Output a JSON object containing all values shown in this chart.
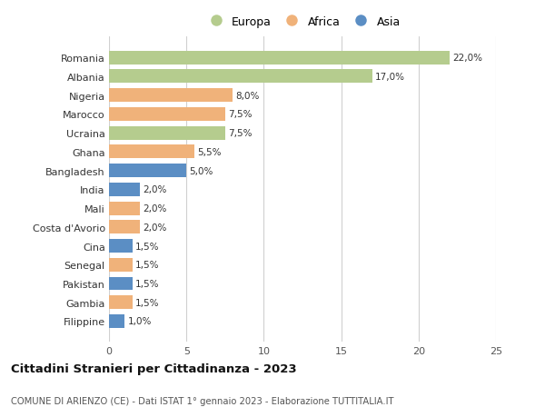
{
  "countries": [
    "Romania",
    "Albania",
    "Nigeria",
    "Marocco",
    "Ucraina",
    "Ghana",
    "Bangladesh",
    "India",
    "Mali",
    "Costa d'Avorio",
    "Cina",
    "Senegal",
    "Pakistan",
    "Gambia",
    "Filippine"
  ],
  "values": [
    22.0,
    17.0,
    8.0,
    7.5,
    7.5,
    5.5,
    5.0,
    2.0,
    2.0,
    2.0,
    1.5,
    1.5,
    1.5,
    1.5,
    1.0
  ],
  "labels": [
    "22,0%",
    "17,0%",
    "8,0%",
    "7,5%",
    "7,5%",
    "5,5%",
    "5,0%",
    "2,0%",
    "2,0%",
    "2,0%",
    "1,5%",
    "1,5%",
    "1,5%",
    "1,5%",
    "1,0%"
  ],
  "continents": [
    "Europa",
    "Europa",
    "Africa",
    "Africa",
    "Europa",
    "Africa",
    "Asia",
    "Asia",
    "Africa",
    "Africa",
    "Asia",
    "Africa",
    "Asia",
    "Africa",
    "Asia"
  ],
  "colors": {
    "Europa": "#b5cc8e",
    "Africa": "#f0b27a",
    "Asia": "#5b8ec4"
  },
  "legend_labels": [
    "Europa",
    "Africa",
    "Asia"
  ],
  "xlim": [
    0,
    25
  ],
  "xticks": [
    0,
    5,
    10,
    15,
    20,
    25
  ],
  "title": "Cittadini Stranieri per Cittadinanza - 2023",
  "subtitle": "COMUNE DI ARIENZO (CE) - Dati ISTAT 1° gennaio 2023 - Elaborazione TUTTITALIA.IT",
  "background_color": "#ffffff",
  "grid_color": "#d0d0d0",
  "bar_height": 0.72,
  "figsize": [
    6.0,
    4.6
  ],
  "dpi": 100
}
